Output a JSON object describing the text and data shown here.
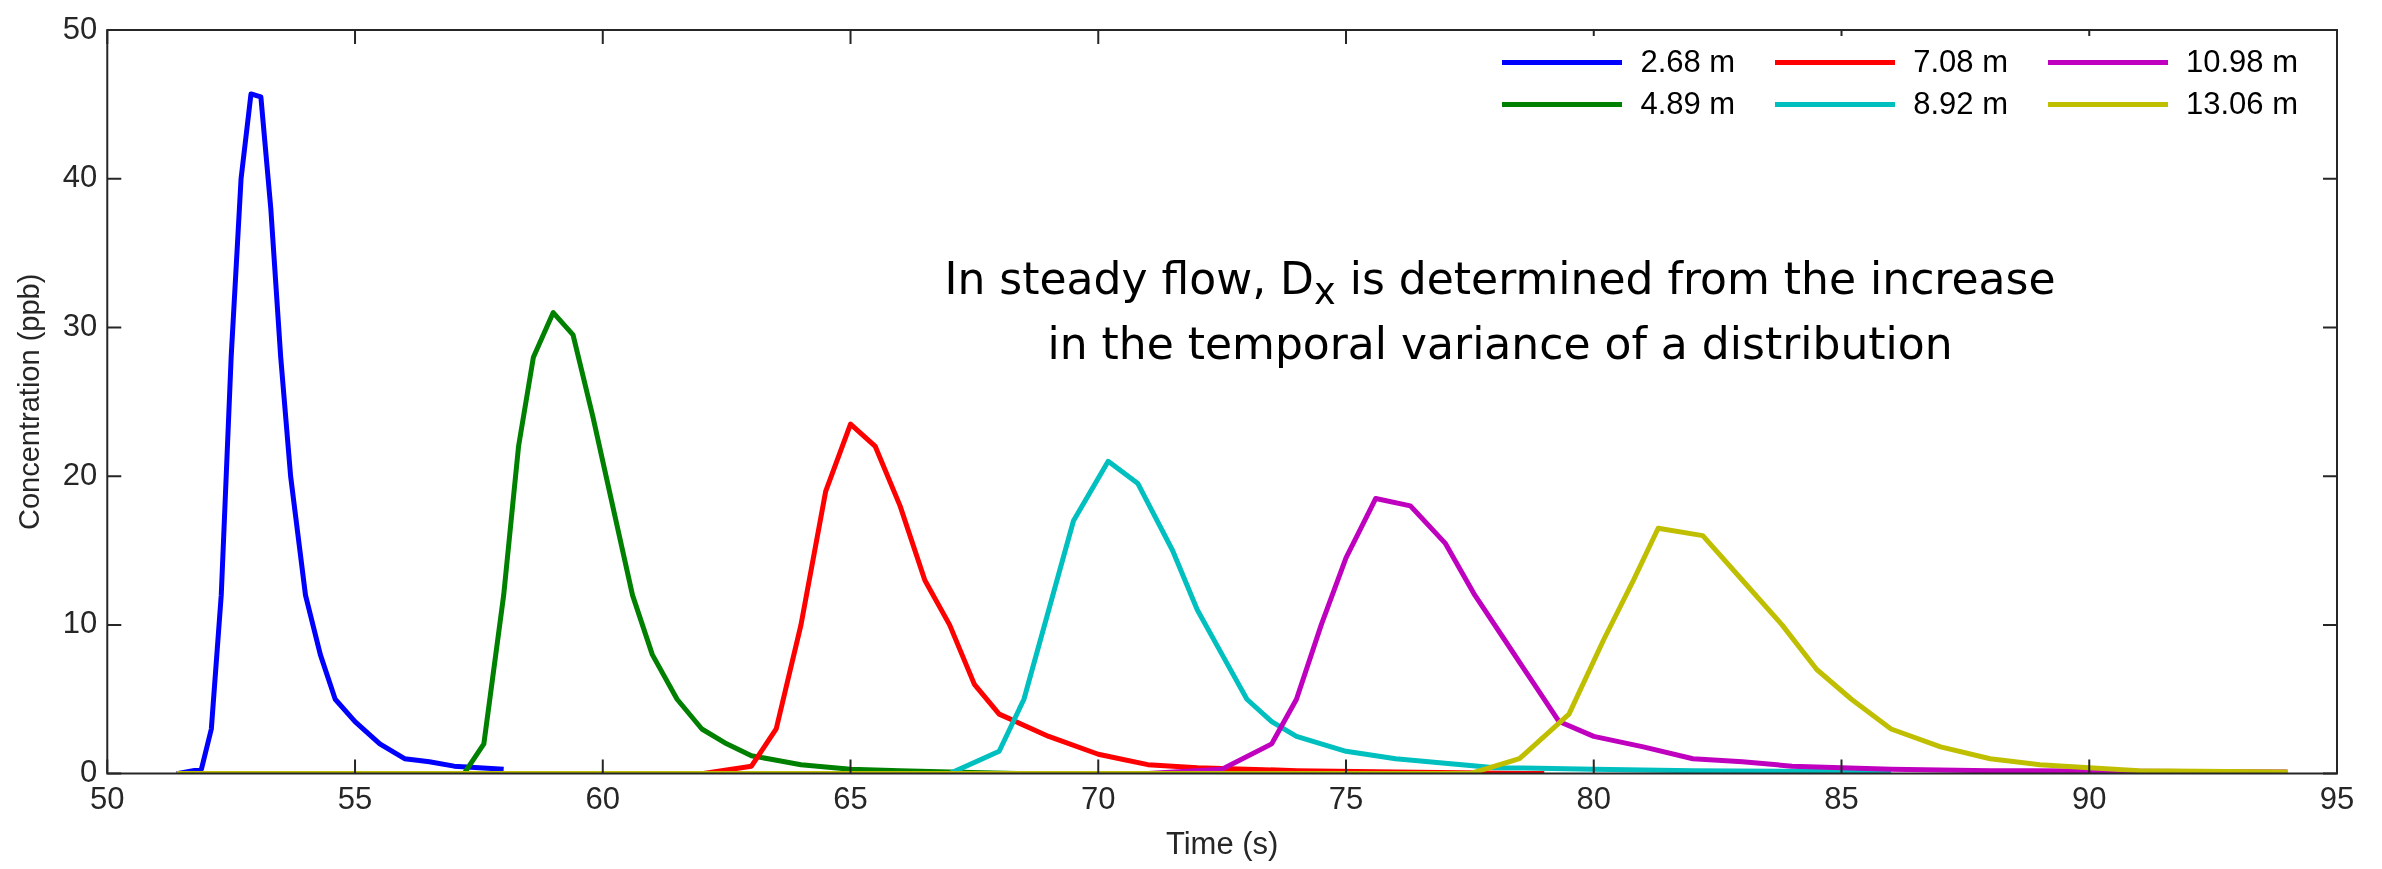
{
  "chart_data": {
    "type": "line",
    "xlabel": "Time (s)",
    "ylabel": "Concentration (ppb)",
    "xlim": [
      50,
      95
    ],
    "xticks": [
      50,
      55,
      60,
      65,
      70,
      75,
      80,
      85,
      90,
      95
    ],
    "ylim": [
      0,
      50
    ],
    "yticks": [
      0,
      10,
      20,
      30,
      40,
      50
    ],
    "grid": false,
    "legend": "top right",
    "marker": "none",
    "line_style": "solid",
    "annotations": [
      "In steady flow, D$_{x}$ is determined from the increase in the temporal variance of a distribution"
    ],
    "series": [
      {
        "name": "2.68 m",
        "color": "#0000ff",
        "x": [
          51.4,
          51.9,
          52.1,
          52.3,
          52.5,
          52.7,
          52.9,
          53.1,
          53.3,
          53.5,
          53.7,
          54.0,
          54.3,
          54.6,
          55.0,
          55.5,
          56.0,
          56.5,
          57.0,
          58.0
        ],
        "values": [
          0,
          0.3,
          3,
          12,
          28,
          40,
          45.7,
          45.5,
          38,
          28,
          20,
          12,
          8,
          5,
          3.5,
          2,
          1,
          0.8,
          0.5,
          0.3
        ]
      },
      {
        "name": "4.89 m",
        "color": "#008000",
        "x": [
          57.2,
          57.6,
          58.0,
          58.3,
          58.6,
          59.0,
          59.4,
          59.8,
          60.2,
          60.6,
          61.0,
          61.5,
          62.0,
          62.5,
          63.0,
          64.0,
          65.0,
          66.0,
          67.0,
          68.5
        ],
        "values": [
          0,
          2,
          12,
          22,
          28,
          31,
          29.5,
          24,
          18,
          12,
          8,
          5,
          3,
          2,
          1.2,
          0.6,
          0.3,
          0.2,
          0.1,
          0
        ]
      },
      {
        "name": "7.08 m",
        "color": "#ff0000",
        "x": [
          62.0,
          63.0,
          63.5,
          64.0,
          64.5,
          65.0,
          65.5,
          66.0,
          66.5,
          67.0,
          67.5,
          68.0,
          69.0,
          70.0,
          71.0,
          72.0,
          74.0,
          76.0,
          79.0
        ],
        "values": [
          0,
          0.5,
          3,
          10,
          19,
          23.5,
          22,
          18,
          13,
          10,
          6,
          4,
          2.5,
          1.3,
          0.6,
          0.4,
          0.2,
          0.1,
          0
        ]
      },
      {
        "name": "8.92 m",
        "color": "#00bfbf",
        "x": [
          67.0,
          68.0,
          68.5,
          69.0,
          69.5,
          70.2,
          70.8,
          71.5,
          72.0,
          72.5,
          73.0,
          73.5,
          74.0,
          75.0,
          76.0,
          77.0,
          78.0,
          80.0,
          82.0,
          86.0
        ],
        "values": [
          0,
          1.5,
          5,
          11,
          17,
          21,
          19.5,
          15,
          11,
          8,
          5,
          3.5,
          2.5,
          1.5,
          1,
          0.7,
          0.4,
          0.3,
          0.2,
          0.1
        ]
      },
      {
        "name": "10.98 m",
        "color": "#bf00bf",
        "x": [
          71.0,
          72.5,
          73.5,
          74.0,
          74.5,
          75.0,
          75.6,
          76.3,
          77.0,
          77.6,
          78.2,
          78.8,
          79.3,
          80.0,
          81.0,
          82.0,
          83.0,
          84.0,
          86.0,
          88.0,
          94.0
        ],
        "values": [
          0,
          0.3,
          2,
          5,
          10,
          14.5,
          18.5,
          18,
          15.5,
          12,
          9,
          6,
          3.5,
          2.5,
          1.8,
          1,
          0.8,
          0.5,
          0.3,
          0.2,
          0.1
        ]
      },
      {
        "name": "13.06 m",
        "color": "#bfbf00",
        "x": [
          51.4,
          77.5,
          78.5,
          79.5,
          80.2,
          80.8,
          81.3,
          82.2,
          83.0,
          83.8,
          84.5,
          85.2,
          86.0,
          87.0,
          88.0,
          89.0,
          90.0,
          91.0,
          94.0
        ],
        "values": [
          0,
          0,
          1,
          4,
          9,
          13,
          16.5,
          16,
          13,
          10,
          7,
          5,
          3,
          1.8,
          1,
          0.6,
          0.4,
          0.2,
          0.1
        ]
      }
    ]
  }
}
